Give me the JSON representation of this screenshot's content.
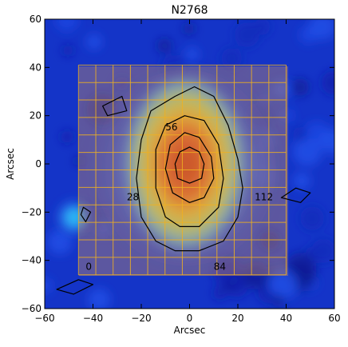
{
  "chart_data": {
    "type": "heatmap",
    "title": "N2768",
    "xlabel": "Arcsec",
    "ylabel": "Arcsec",
    "xlim": [
      -60,
      60
    ],
    "ylim": [
      -60,
      60
    ],
    "x_ticks": [
      "−60",
      "−40",
      "−20",
      "0",
      "20",
      "40",
      "60"
    ],
    "y_ticks": [
      "−60",
      "−40",
      "−20",
      "0",
      "20",
      "40",
      "60"
    ],
    "x_tick_values": [
      -60,
      -40,
      -20,
      0,
      20,
      40,
      60
    ],
    "y_tick_values": [
      -60,
      -40,
      -20,
      0,
      20,
      40,
      60
    ],
    "grid_overlay": {
      "x_range": [
        -46,
        40
      ],
      "y_range": [
        -46,
        41
      ],
      "divisions": 12,
      "fiber_labels": [
        {
          "text": "0",
          "x": -43,
          "y": -44
        },
        {
          "text": "28",
          "x": -26,
          "y": -15
        },
        {
          "text": "56",
          "x": -10,
          "y": 14
        },
        {
          "text": "84",
          "x": 10,
          "y": -44
        },
        {
          "text": "112",
          "x": 27,
          "y": -15
        }
      ]
    },
    "contours": [
      {
        "level": 1,
        "points": [
          [
            -14,
            -32
          ],
          [
            -20,
            -22
          ],
          [
            -22,
            -6
          ],
          [
            -20,
            10
          ],
          [
            -16,
            22
          ],
          [
            -6,
            28
          ],
          [
            2,
            32
          ],
          [
            10,
            28
          ],
          [
            16,
            16
          ],
          [
            20,
            2
          ],
          [
            22,
            -10
          ],
          [
            20,
            -22
          ],
          [
            14,
            -32
          ],
          [
            4,
            -36
          ],
          [
            -6,
            -36
          ]
        ]
      },
      {
        "level": 2,
        "points": [
          [
            -10,
            -22
          ],
          [
            -14,
            -10
          ],
          [
            -14,
            6
          ],
          [
            -10,
            16
          ],
          [
            -2,
            20
          ],
          [
            6,
            18
          ],
          [
            12,
            8
          ],
          [
            14,
            -6
          ],
          [
            12,
            -18
          ],
          [
            4,
            -26
          ],
          [
            -4,
            -26
          ]
        ]
      },
      {
        "level": 3,
        "points": [
          [
            -7,
            -12
          ],
          [
            -10,
            -2
          ],
          [
            -8,
            8
          ],
          [
            -2,
            13
          ],
          [
            4,
            11
          ],
          [
            9,
            3
          ],
          [
            10,
            -6
          ],
          [
            6,
            -14
          ],
          [
            0,
            -16
          ]
        ]
      },
      {
        "level": 4,
        "points": [
          [
            -5,
            -6
          ],
          [
            -6,
            0
          ],
          [
            -4,
            5
          ],
          [
            0,
            7
          ],
          [
            4,
            5
          ],
          [
            6,
            0
          ],
          [
            5,
            -6
          ],
          [
            0,
            -8
          ]
        ]
      },
      {
        "level": 5,
        "points": [
          [
            -28,
            28
          ],
          [
            -36,
            24
          ],
          [
            -34,
            20
          ],
          [
            -26,
            22
          ]
        ]
      },
      {
        "level": 6,
        "points": [
          [
            -45,
            -21
          ],
          [
            -43,
            -24
          ],
          [
            -41,
            -20
          ],
          [
            -44,
            -18
          ]
        ]
      },
      {
        "level": 7,
        "points": [
          [
            -55,
            -52
          ],
          [
            -46,
            -48
          ],
          [
            -40,
            -50
          ],
          [
            -48,
            -54
          ]
        ]
      },
      {
        "level": 8,
        "points": [
          [
            38,
            -14
          ],
          [
            46,
            -16
          ],
          [
            50,
            -12
          ],
          [
            44,
            -10
          ]
        ]
      }
    ],
    "colormap": [
      "#0a1a9a",
      "#1240e0",
      "#2a8af0",
      "#a8d860",
      "#f0c018",
      "#ee6010",
      "#cc3000"
    ],
    "grid": false
  }
}
